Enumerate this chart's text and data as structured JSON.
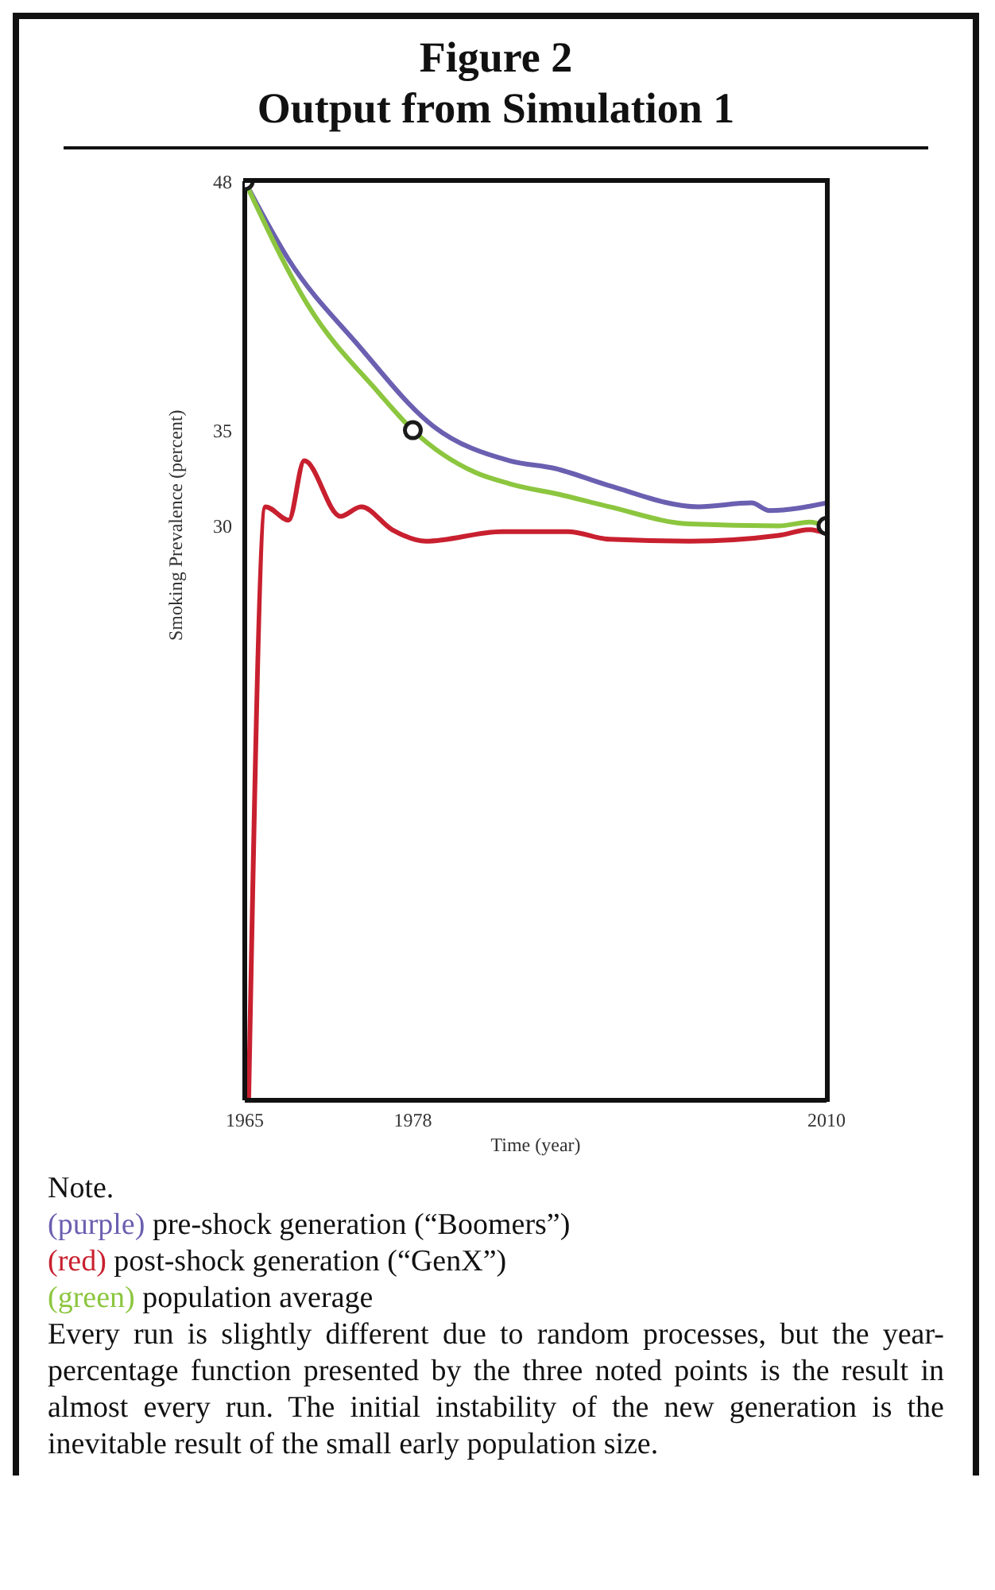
{
  "chart_data": {
    "type": "line",
    "title": "Figure 2\nOutput from Simulation 1",
    "xlabel": "Time (year)",
    "ylabel": "Smoking Prevalence (percent)",
    "xlim": [
      1965,
      2010
    ],
    "xticks": [
      1965,
      1978,
      2010
    ],
    "ylim": [
      0,
      48
    ],
    "yticks": [
      30,
      35,
      48
    ],
    "grid": false,
    "marker": "none",
    "line_style": "solid",
    "series": [
      {
        "color": "#6a5fb0",
        "x": [
          1965,
          1968.4,
          1973.7,
          1979.6,
          1985.5,
          1989,
          1993.2,
          2000.1,
          2004.2,
          2005.6,
          2010
        ],
        "values": [
          48,
          43.9,
          39.5,
          35.2,
          33.4,
          33.0,
          32.1,
          31.0,
          31.2,
          30.8,
          31.2
        ]
      },
      {
        "color": "#c8202f",
        "x": [
          1965.3,
          1966.6,
          1968.4,
          1969.6,
          1972.4,
          1974,
          1976.4,
          1979,
          1984.9,
          1990,
          1993.2,
          1999.4,
          2006.3,
          2008.7,
          2010
        ],
        "values": [
          0,
          31.0,
          30.3,
          33.4,
          30.5,
          31.0,
          29.8,
          29.2,
          29.7,
          29.7,
          29.3,
          29.2,
          29.5,
          29.8,
          29.6
        ]
      },
      {
        "color": "#8cc63f",
        "x": [
          1965,
          1970,
          1975.3,
          1978,
          1982.8,
          1985.5,
          1989.6,
          1993.2,
          1999.4,
          2006.3,
          2008.7,
          2010
        ],
        "values": [
          48,
          41.4,
          37.0,
          35,
          32.8,
          32.2,
          31.6,
          31.0,
          30.1,
          30.0,
          30.2,
          30
        ]
      },
      {
        "type": "scatter",
        "marker": "circle",
        "color": "#1a1a1a",
        "x": [
          1965,
          1978,
          2010
        ],
        "values": [
          48,
          35,
          30
        ]
      }
    ],
    "annotations": [
      "Note.",
      "(purple) pre-shock generation (“Boomers”)",
      "(red) post-shock generation (“GenX”)",
      "(green) population average",
      "Every run is slightly different due to random processes, but the year-percentage function presented by the three noted points is the result in almost every run. The initial instability of the new generation is the inevitable result of the small early population size."
    ]
  }
}
